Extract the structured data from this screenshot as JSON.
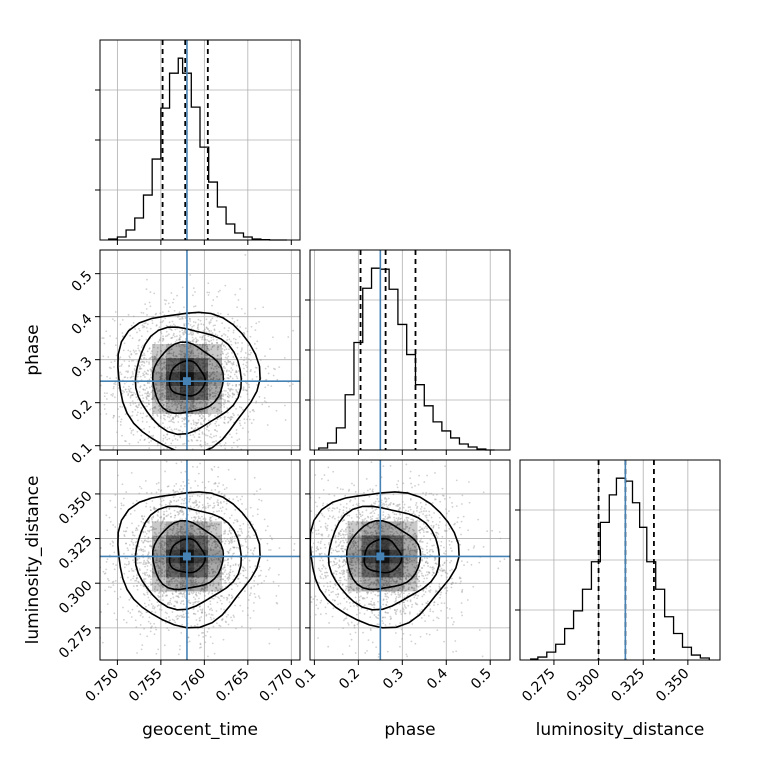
{
  "chart_data": {
    "type": "corner",
    "parameters": [
      "geocent_time",
      "phase",
      "luminosity_distance"
    ],
    "truth": {
      "geocent_time": 0.758,
      "phase": 0.25,
      "luminosity_distance": 0.315
    },
    "grid": true,
    "colors": {
      "truth_line": "#4682b4",
      "histogram": "#000000",
      "grid": "#b0b0b0",
      "density": "#000000"
    },
    "diagonal": [
      {
        "parameter": "geocent_time",
        "xlim": [
          0.748,
          0.771
        ],
        "xticks": [
          0.75,
          0.755,
          0.76,
          0.765,
          0.77
        ],
        "xtick_labels": [
          "0.750",
          "0.755",
          "0.760",
          "0.765",
          "0.770"
        ],
        "show_xtick_labels": true,
        "xlabel": "geocent_time",
        "quantiles": [
          0.7552,
          0.7578,
          0.7604
        ],
        "bin_edges": [
          0.749,
          0.75,
          0.751,
          0.752,
          0.753,
          0.754,
          0.755,
          0.756,
          0.757,
          0.7575,
          0.7585,
          0.7595,
          0.7605,
          0.7615,
          0.7625,
          0.7635,
          0.7645,
          0.7655,
          0.7665,
          0.7675,
          0.7685,
          0.7695
        ],
        "counts": [
          1,
          3,
          10,
          22,
          45,
          81,
          132,
          167,
          182,
          167,
          133,
          93,
          58,
          33,
          16,
          7,
          3,
          1,
          0.3,
          0,
          0
        ]
      },
      {
        "parameter": "phase",
        "xlim": [
          0.09,
          0.545
        ],
        "xticks": [
          0.1,
          0.2,
          0.3,
          0.4,
          0.5
        ],
        "xtick_labels": [
          "0.1",
          "0.2",
          "0.3",
          "0.4",
          "0.5"
        ],
        "show_xtick_labels": true,
        "xlabel": "phase",
        "quantiles": [
          0.205,
          0.262,
          0.33
        ],
        "bin_edges": [
          0.11,
          0.13,
          0.15,
          0.17,
          0.19,
          0.21,
          0.23,
          0.25,
          0.27,
          0.29,
          0.31,
          0.33,
          0.35,
          0.37,
          0.39,
          0.41,
          0.43,
          0.45,
          0.47,
          0.49,
          0.51
        ],
        "counts": [
          2,
          7,
          22,
          55,
          107,
          161,
          181,
          180,
          160,
          125,
          95,
          65,
          44,
          28,
          19,
          12,
          6,
          3,
          1,
          0
        ]
      },
      {
        "parameter": "luminosity_distance",
        "xlim": [
          0.256,
          0.368
        ],
        "xticks": [
          0.275,
          0.3,
          0.325,
          0.35
        ],
        "xtick_labels": [
          "0.275",
          "0.300",
          "0.325",
          "0.350"
        ],
        "show_xtick_labels": true,
        "xlabel": "luminosity_distance",
        "quantiles": [
          0.3,
          0.315,
          0.331
        ],
        "bin_edges": [
          0.262,
          0.266,
          0.271,
          0.276,
          0.281,
          0.286,
          0.291,
          0.296,
          0.301,
          0.306,
          0.31,
          0.315,
          0.319,
          0.323,
          0.327,
          0.332,
          0.337,
          0.342,
          0.347,
          0.352,
          0.357,
          0.362
        ],
        "counts": [
          1,
          3,
          8,
          16,
          32,
          50,
          72,
          100,
          140,
          168,
          185,
          182,
          160,
          135,
          100,
          72,
          44,
          27,
          13,
          5,
          2
        ]
      }
    ],
    "off_diagonal": [
      {
        "x": "geocent_time",
        "y": "phase",
        "xlim": [
          0.748,
          0.771
        ],
        "ylim": [
          0.09,
          0.555
        ],
        "yticks": [
          0.1,
          0.2,
          0.3,
          0.4,
          0.5
        ],
        "ytick_labels": [
          "0.1",
          "0.2",
          "0.3",
          "0.4",
          "0.5"
        ],
        "show_ytick_labels": true,
        "ylabel": "phase",
        "center": [
          0.758,
          0.255
        ],
        "spread": [
          0.0028,
          0.058
        ],
        "samples": 2200
      },
      {
        "x": "geocent_time",
        "y": "luminosity_distance",
        "xlim": [
          0.748,
          0.771
        ],
        "ylim": [
          0.257,
          0.369
        ],
        "yticks": [
          0.275,
          0.3,
          0.325,
          0.35
        ],
        "ytick_labels": [
          "0.275",
          "0.300",
          "0.325",
          "0.350"
        ],
        "show_ytick_labels": true,
        "ylabel": "luminosity_distance",
        "center": [
          0.758,
          0.315
        ],
        "spread": [
          0.0028,
          0.0135
        ],
        "samples": 2200
      },
      {
        "x": "phase",
        "y": "luminosity_distance",
        "xlim": [
          0.09,
          0.545
        ],
        "ylim": [
          0.257,
          0.369
        ],
        "center": [
          0.255,
          0.315
        ],
        "spread": [
          0.058,
          0.0135
        ],
        "samples": 2200
      }
    ]
  }
}
